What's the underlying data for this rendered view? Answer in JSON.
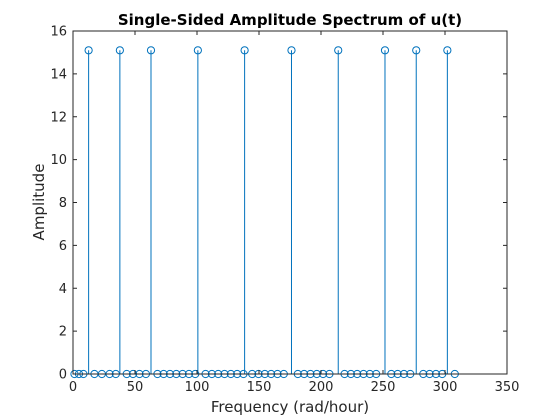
{
  "chart_data": {
    "type": "stem",
    "title": "Single-Sided Amplitude Spectrum of u(t)",
    "xlabel": "Frequency (rad/hour)",
    "ylabel": "Amplitude",
    "xlim": [
      0,
      350
    ],
    "ylim": [
      0,
      16
    ],
    "xticks": [
      0,
      50,
      100,
      150,
      200,
      250,
      300,
      350
    ],
    "yticks": [
      0,
      2,
      4,
      6,
      8,
      10,
      12,
      14,
      16
    ],
    "grid": false,
    "legend": "none",
    "marker": "circle",
    "color": "#0072BD",
    "points": [
      {
        "x": 1.2,
        "y": 0
      },
      {
        "x": 4.8,
        "y": 0
      },
      {
        "x": 8.4,
        "y": 0
      },
      {
        "x": 12.6,
        "y": 15.1
      },
      {
        "x": 17.3,
        "y": 0
      },
      {
        "x": 23.3,
        "y": 0
      },
      {
        "x": 29.5,
        "y": 0
      },
      {
        "x": 34.5,
        "y": 0
      },
      {
        "x": 37.8,
        "y": 15.1
      },
      {
        "x": 43.3,
        "y": 0
      },
      {
        "x": 48.4,
        "y": 0
      },
      {
        "x": 53.6,
        "y": 0
      },
      {
        "x": 58.8,
        "y": 0
      },
      {
        "x": 62.9,
        "y": 15.1
      },
      {
        "x": 68.1,
        "y": 0
      },
      {
        "x": 73.1,
        "y": 0
      },
      {
        "x": 78.2,
        "y": 0
      },
      {
        "x": 83.3,
        "y": 0
      },
      {
        "x": 88.4,
        "y": 0
      },
      {
        "x": 93.5,
        "y": 0
      },
      {
        "x": 98.6,
        "y": 0
      },
      {
        "x": 100.7,
        "y": 15.1
      },
      {
        "x": 106.9,
        "y": 0
      },
      {
        "x": 112.0,
        "y": 0
      },
      {
        "x": 117.1,
        "y": 0
      },
      {
        "x": 122.2,
        "y": 0
      },
      {
        "x": 127.3,
        "y": 0
      },
      {
        "x": 132.4,
        "y": 0
      },
      {
        "x": 137.5,
        "y": 0
      },
      {
        "x": 138.4,
        "y": 15.1
      },
      {
        "x": 144.5,
        "y": 0
      },
      {
        "x": 149.6,
        "y": 0
      },
      {
        "x": 154.7,
        "y": 0
      },
      {
        "x": 159.8,
        "y": 0
      },
      {
        "x": 164.9,
        "y": 0
      },
      {
        "x": 170.0,
        "y": 0
      },
      {
        "x": 176.2,
        "y": 15.1
      },
      {
        "x": 181.3,
        "y": 0
      },
      {
        "x": 186.4,
        "y": 0
      },
      {
        "x": 191.5,
        "y": 0
      },
      {
        "x": 196.6,
        "y": 0
      },
      {
        "x": 201.7,
        "y": 0
      },
      {
        "x": 206.8,
        "y": 0
      },
      {
        "x": 213.9,
        "y": 15.1
      },
      {
        "x": 219.0,
        "y": 0
      },
      {
        "x": 224.1,
        "y": 0
      },
      {
        "x": 229.2,
        "y": 0
      },
      {
        "x": 234.3,
        "y": 0
      },
      {
        "x": 239.4,
        "y": 0
      },
      {
        "x": 244.5,
        "y": 0
      },
      {
        "x": 251.6,
        "y": 15.1
      },
      {
        "x": 256.7,
        "y": 0
      },
      {
        "x": 261.8,
        "y": 0
      },
      {
        "x": 266.9,
        "y": 0
      },
      {
        "x": 272.0,
        "y": 0
      },
      {
        "x": 276.8,
        "y": 15.1
      },
      {
        "x": 282.5,
        "y": 0
      },
      {
        "x": 287.6,
        "y": 0
      },
      {
        "x": 292.7,
        "y": 0
      },
      {
        "x": 297.8,
        "y": 0
      },
      {
        "x": 301.9,
        "y": 15.1
      },
      {
        "x": 307.9,
        "y": 0
      }
    ]
  }
}
